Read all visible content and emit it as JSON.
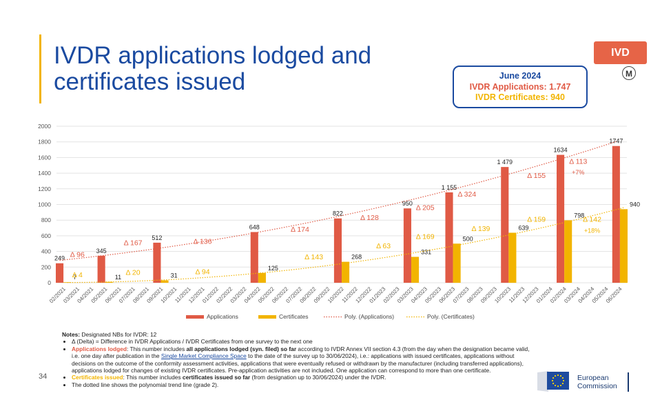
{
  "header": {
    "title": "IVDR applications lodged and certificates issued",
    "badge": "IVD",
    "logo_letter": "M"
  },
  "summary_box": {
    "date": "June 2024",
    "applications": "IVDR Applications: 1.747",
    "certificates": "IVDR Certificates: 940"
  },
  "chart_data": {
    "type": "bar",
    "x": [
      "02/2021",
      "03/2021",
      "04/2021",
      "05/2021",
      "06/2021",
      "07/2021",
      "08/2021",
      "09/2021",
      "10/2021",
      "11/2021",
      "12/2021",
      "01/2022",
      "02/2022",
      "03/2022",
      "04/2022",
      "05/2022",
      "06/2022",
      "07/2022",
      "08/2022",
      "09/2022",
      "10/2022",
      "11/2022",
      "12/2022",
      "01/2023",
      "02/2023",
      "03/2023",
      "04/2023",
      "05/2023",
      "06/2023",
      "07/2023",
      "08/2023",
      "09/2023",
      "10/2023",
      "11/2023",
      "12/2023",
      "01/2024",
      "02/2024",
      "03/2024",
      "04/2024",
      "05/2024",
      "06/2024"
    ],
    "ylim": [
      0,
      2000
    ],
    "yticks": [
      0,
      200,
      400,
      600,
      800,
      1000,
      1200,
      1400,
      1600,
      1800,
      2000
    ],
    "series": [
      {
        "name": "Applications",
        "color": "#e05a45",
        "points": [
          {
            "x": "02/2021",
            "y": 249,
            "label": "249"
          },
          {
            "x": "05/2021",
            "y": 345,
            "label": "345"
          },
          {
            "x": "09/2021",
            "y": 512,
            "label": "512"
          },
          {
            "x": "04/2022",
            "y": 648,
            "label": "648"
          },
          {
            "x": "10/2022",
            "y": 822,
            "label": "822"
          },
          {
            "x": "03/2023",
            "y": 950,
            "label": "950"
          },
          {
            "x": "06/2023",
            "y": 1155,
            "label": "1 155"
          },
          {
            "x": "10/2023",
            "y": 1479,
            "label": "1 479"
          },
          {
            "x": "02/2024",
            "y": 1634,
            "label": "1634"
          },
          {
            "x": "06/2024",
            "y": 1747,
            "label": "1747"
          }
        ]
      },
      {
        "name": "Certificates",
        "color": "#f2b400",
        "points": [
          {
            "x": "02/2021",
            "y": 7,
            "label": "7"
          },
          {
            "x": "05/2021",
            "y": 11,
            "label": "11"
          },
          {
            "x": "09/2021",
            "y": 31,
            "label": "31"
          },
          {
            "x": "04/2022",
            "y": 125,
            "label": "125"
          },
          {
            "x": "10/2022",
            "y": 268,
            "label": "268"
          },
          {
            "x": "03/2023",
            "y": 331,
            "label": "331"
          },
          {
            "x": "06/2023",
            "y": 500,
            "label": "500"
          },
          {
            "x": "10/2023",
            "y": 639,
            "label": "639"
          },
          {
            "x": "02/2024",
            "y": 798,
            "label": "798"
          },
          {
            "x": "06/2024",
            "y": 940,
            "label": "940"
          }
        ]
      }
    ],
    "trendlines": [
      {
        "name": "Poly. (Applications)",
        "color": "#e05a45",
        "style": "dotted"
      },
      {
        "name": "Poly. (Certificates)",
        "color": "#f2b400",
        "style": "dotted"
      }
    ],
    "delta_annotations": [
      {
        "series": "Applications",
        "text": "Δ 96",
        "x": "03/2021",
        "y": 330
      },
      {
        "series": "Applications",
        "text": "Δ 167",
        "x": "07/2021",
        "y": 480
      },
      {
        "series": "Applications",
        "text": "Δ 136",
        "x": "12/2021",
        "y": 500
      },
      {
        "series": "Applications",
        "text": "Δ 174",
        "x": "07/2022",
        "y": 650
      },
      {
        "series": "Applications",
        "text": "Δ 128",
        "x": "12/2022",
        "y": 800
      },
      {
        "series": "Applications",
        "text": "Δ 205",
        "x": "04/2023",
        "y": 930
      },
      {
        "series": "Applications",
        "text": "Δ 324",
        "x": "07/2023",
        "y": 1100
      },
      {
        "series": "Applications",
        "text": "Δ 155",
        "x": "12/2023",
        "y": 1340
      },
      {
        "series": "Applications",
        "text": "Δ 113",
        "x": "03/2024",
        "y": 1520
      },
      {
        "series": "Applications",
        "text": "+7%",
        "x": "03/2024",
        "y": 1385
      },
      {
        "series": "Certificates",
        "text": "Δ 4",
        "x": "03/2021",
        "y": 70
      },
      {
        "series": "Certificates",
        "text": "Δ 20",
        "x": "07/2021",
        "y": 100
      },
      {
        "series": "Certificates",
        "text": "Δ 94",
        "x": "12/2021",
        "y": 110
      },
      {
        "series": "Certificates",
        "text": "Δ 143",
        "x": "08/2022",
        "y": 300
      },
      {
        "series": "Certificates",
        "text": "Δ 63",
        "x": "01/2023",
        "y": 440
      },
      {
        "series": "Certificates",
        "text": "Δ 169",
        "x": "04/2023",
        "y": 560
      },
      {
        "series": "Certificates",
        "text": "Δ 139",
        "x": "08/2023",
        "y": 660
      },
      {
        "series": "Certificates",
        "text": "Δ 159",
        "x": "12/2023",
        "y": 780
      },
      {
        "series": "Certificates",
        "text": "Δ 142",
        "x": "04/2024",
        "y": 780
      },
      {
        "series": "Certificates",
        "text": "+18%",
        "x": "04/2024",
        "y": 640
      }
    ],
    "legend_placement": "bottom",
    "grid": true
  },
  "notes": {
    "title": "Notes:",
    "title_rest": " Designated NBs for IVDR: 12",
    "items": [
      "Δ (Delta) = Difference in IVDR Applications / IVDR Certificates from one survey to the next one",
      "Applications lodged",
      ": This number includes ",
      "all applications lodged (syn. filed) so far",
      " according to IVDR Annex VII section 4.3 (from the day when the designation became valid, i.e. one day after publication in the ",
      "Single Market Compliance Space",
      " to the date of the survey up to 30/06/2024), i.e.: applications with issued certificates, applications without decisions on the outcome of the conformity assessment activities, applications that were eventually refused or withdrawn by the manufacturer (including transferred applications), applications lodged for changes of existing IVDR certificates. Pre-application activities are not included. One application can correspond to more than one certificate.",
      "Certificates issued",
      ": This number includes ",
      "certificates issued so far",
      " (from designation up to 30/06/2024) under the IVDR.",
      "The dotted line shows the polynomial trend line (grade 2)."
    ]
  },
  "footer": {
    "page_number": "34",
    "ec_line1": "European",
    "ec_line2": "Commission"
  }
}
